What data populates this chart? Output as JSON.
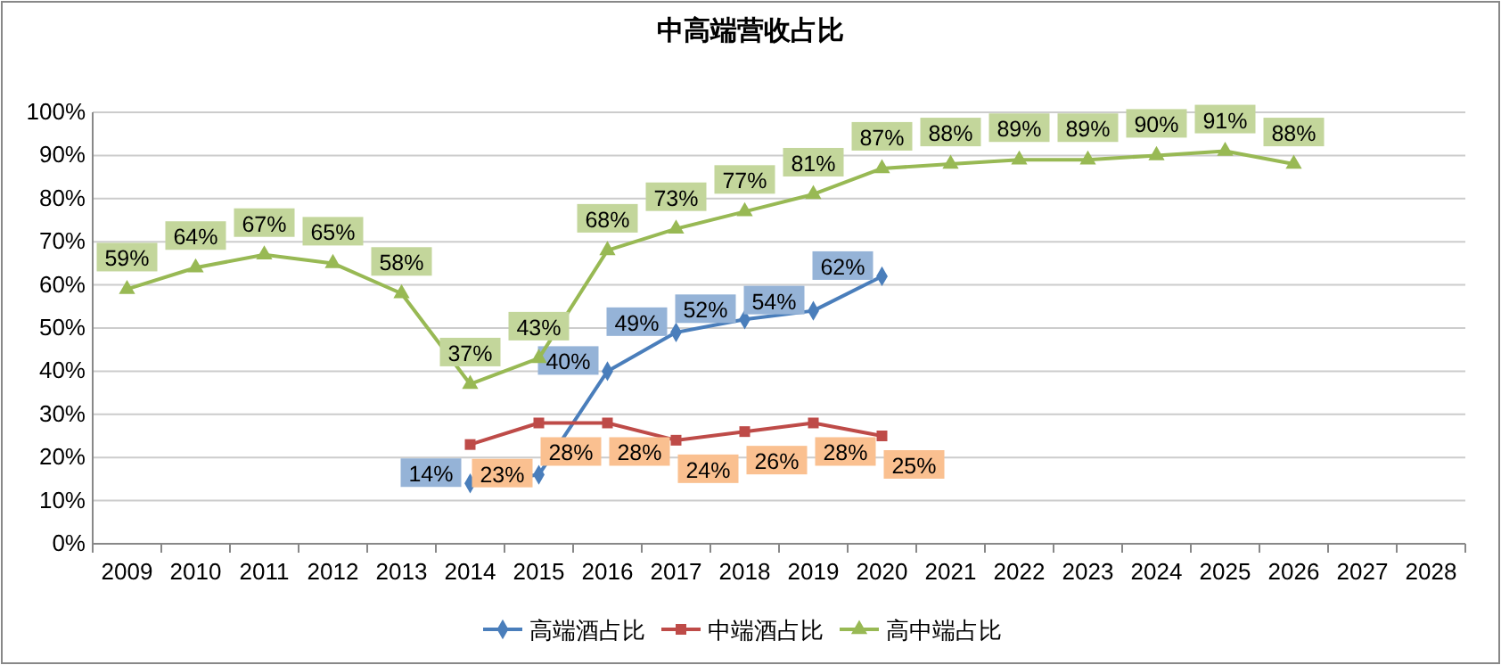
{
  "chart_data": {
    "type": "line",
    "title": "中高端营收占比",
    "categories": [
      "2009",
      "2010",
      "2011",
      "2012",
      "2013",
      "2014",
      "2015",
      "2016",
      "2017",
      "2018",
      "2019",
      "2020",
      "2021",
      "2022",
      "2023",
      "2024",
      "2025",
      "2026",
      "2027",
      "2028"
    ],
    "series": [
      {
        "name": "高端酒占比",
        "color": "#4a7ebb",
        "marker": "diamond",
        "values": [
          null,
          null,
          null,
          null,
          null,
          14,
          16,
          40,
          49,
          52,
          54,
          62,
          null,
          null,
          null,
          null,
          null,
          null,
          null,
          null
        ],
        "value_labels": [
          null,
          null,
          null,
          null,
          null,
          "14%",
          null,
          "40%",
          "49%",
          "52%",
          "54%",
          "62%",
          null,
          null,
          null,
          null,
          null,
          null,
          null,
          null
        ]
      },
      {
        "name": "中端酒占比",
        "color": "#be4b48",
        "marker": "square",
        "values": [
          null,
          null,
          null,
          null,
          null,
          23,
          28,
          28,
          24,
          26,
          28,
          25,
          null,
          null,
          null,
          null,
          null,
          null,
          null,
          null
        ],
        "value_labels": [
          null,
          null,
          null,
          null,
          null,
          "23%",
          "28%",
          "28%",
          "24%",
          "26%",
          "28%",
          "25%",
          null,
          null,
          null,
          null,
          null,
          null,
          null,
          null
        ]
      },
      {
        "name": "高中端占比",
        "color": "#98b954",
        "marker": "triangle",
        "values": [
          59,
          64,
          67,
          65,
          58,
          37,
          43,
          68,
          73,
          77,
          81,
          87,
          88,
          89,
          89,
          90,
          91,
          88,
          null,
          null
        ],
        "value_labels": [
          "59%",
          "64%",
          "67%",
          "65%",
          "58%",
          "37%",
          "43%",
          "68%",
          "73%",
          "77%",
          "81%",
          "87%",
          "88%",
          "89%",
          "89%",
          "90%",
          "91%",
          "88%",
          null,
          null
        ]
      }
    ],
    "ylim": [
      0,
      100
    ],
    "yticks": [
      {
        "value": 0,
        "label": "0%"
      },
      {
        "value": 10,
        "label": "10%"
      },
      {
        "value": 20,
        "label": "20%"
      },
      {
        "value": 30,
        "label": "30%"
      },
      {
        "value": 40,
        "label": "40%"
      },
      {
        "value": 50,
        "label": "50%"
      },
      {
        "value": 60,
        "label": "60%"
      },
      {
        "value": 70,
        "label": "70%"
      },
      {
        "value": 80,
        "label": "80%"
      },
      {
        "value": 90,
        "label": "90%"
      },
      {
        "value": 100,
        "label": "100%"
      }
    ],
    "grid": "y",
    "legend": "bottom",
    "line_style": "solid"
  }
}
